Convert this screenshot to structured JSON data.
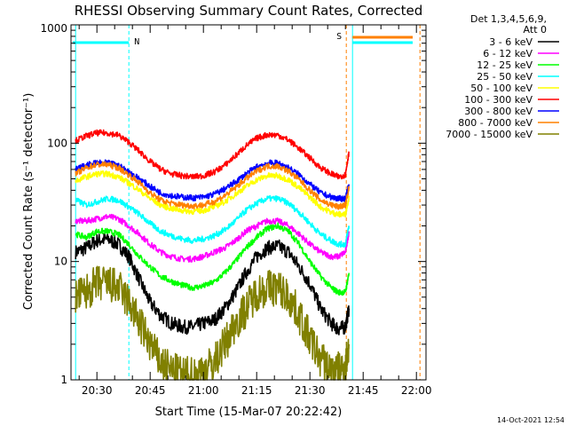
{
  "chart_data": {
    "type": "line",
    "title": "RHESSI Observing Summary Count Rates, Corrected",
    "xlabel": "Start Time (15-Mar-07 20:22:42)",
    "ylabel": "Corrected Count Rate (s⁻¹ detector⁻¹)",
    "yscale": "log",
    "ylim": [
      1,
      1000
    ],
    "yticks": [
      {
        "value": 1,
        "label": "1"
      },
      {
        "value": 10,
        "label": "10"
      },
      {
        "value": 100,
        "label": "100"
      },
      {
        "value": 1000,
        "label": "1000"
      }
    ],
    "xlim": [
      "20:22:42",
      "22:02:42"
    ],
    "xticks": [
      "20:30",
      "20:45",
      "21:00",
      "21:15",
      "21:30",
      "21:45",
      "22:00"
    ],
    "legend": {
      "position": "top-right",
      "header": [
        "Det 1,3,4,5,6,9,",
        "Att 0"
      ]
    },
    "series": [
      {
        "name": "3 - 6 keV",
        "color": "#000000",
        "x": [
          "20:24",
          "20:27",
          "20:30",
          "20:33",
          "20:36",
          "20:39",
          "20:42",
          "20:45",
          "20:48",
          "20:51",
          "20:54",
          "20:57",
          "21:00",
          "21:03",
          "21:06",
          "21:09",
          "21:12",
          "21:15",
          "21:18",
          "21:21",
          "21:24",
          "21:27",
          "21:30",
          "21:33",
          "21:36",
          "21:38",
          "21:40",
          "21:41"
        ],
        "y": [
          12,
          13,
          15,
          15.5,
          14,
          11,
          7,
          4.5,
          3.5,
          3,
          2.8,
          2.8,
          3,
          3.2,
          4,
          5.5,
          8,
          11,
          13,
          13.5,
          12,
          9,
          6.5,
          4,
          3,
          2.7,
          2.8,
          4
        ]
      },
      {
        "name": "6 - 12 keV",
        "color": "#ff00ff",
        "x": [
          "20:24",
          "20:27",
          "20:30",
          "20:33",
          "20:36",
          "20:39",
          "20:42",
          "20:45",
          "20:48",
          "20:51",
          "20:54",
          "20:57",
          "21:00",
          "21:03",
          "21:06",
          "21:09",
          "21:12",
          "21:15",
          "21:18",
          "21:21",
          "21:24",
          "21:27",
          "21:30",
          "21:33",
          "21:36",
          "21:38",
          "21:40",
          "21:41"
        ],
        "y": [
          22,
          22,
          23,
          24,
          23,
          20,
          17,
          14,
          12,
          11,
          10.5,
          10.5,
          11,
          12,
          13,
          15,
          18,
          20,
          22,
          22,
          20,
          17,
          14,
          12,
          11,
          11,
          12,
          18
        ]
      },
      {
        "name": "12 - 25 keV",
        "color": "#00ff00",
        "x": [
          "20:24",
          "20:27",
          "20:30",
          "20:33",
          "20:36",
          "20:39",
          "20:42",
          "20:45",
          "20:48",
          "20:51",
          "20:54",
          "20:57",
          "21:00",
          "21:03",
          "21:06",
          "21:09",
          "21:12",
          "21:15",
          "21:18",
          "21:21",
          "21:24",
          "21:27",
          "21:30",
          "21:33",
          "21:36",
          "21:38",
          "21:40",
          "21:41"
        ],
        "y": [
          17,
          16,
          18,
          18,
          17,
          14,
          11,
          9,
          7.5,
          6.8,
          6.3,
          6,
          6.2,
          6.7,
          8,
          10,
          13,
          16,
          19,
          20,
          18,
          14,
          10,
          7.5,
          6,
          5.5,
          5.5,
          8
        ]
      },
      {
        "name": "25 - 50 keV",
        "color": "#00ffff",
        "x": [
          "20:24",
          "20:27",
          "20:30",
          "20:33",
          "20:36",
          "20:39",
          "20:42",
          "20:45",
          "20:48",
          "20:51",
          "20:54",
          "20:57",
          "21:00",
          "21:03",
          "21:06",
          "21:09",
          "21:12",
          "21:15",
          "21:18",
          "21:21",
          "21:24",
          "21:27",
          "21:30",
          "21:33",
          "21:36",
          "21:38",
          "21:40",
          "21:41"
        ],
        "y": [
          33,
          30,
          32,
          34,
          33,
          29,
          25,
          21,
          18,
          16.5,
          15.5,
          15,
          15.5,
          16.5,
          18.5,
          22,
          27,
          31,
          34,
          34,
          31,
          26,
          21,
          17,
          15,
          14,
          14,
          20
        ]
      },
      {
        "name": "50 - 100 keV",
        "color": "#ffff00",
        "x": [
          "20:24",
          "20:27",
          "20:30",
          "20:33",
          "20:36",
          "20:39",
          "20:42",
          "20:45",
          "20:48",
          "20:51",
          "20:54",
          "20:57",
          "21:00",
          "21:03",
          "21:06",
          "21:09",
          "21:12",
          "21:15",
          "21:18",
          "21:21",
          "21:24",
          "21:27",
          "21:30",
          "21:33",
          "21:36",
          "21:38",
          "21:40",
          "21:41"
        ],
        "y": [
          48,
          52,
          55,
          55,
          52,
          46,
          40,
          34,
          30,
          28,
          27,
          26.5,
          27,
          29,
          32,
          37,
          43,
          49,
          53,
          53,
          49,
          42,
          35,
          29,
          26,
          25,
          25,
          35
        ]
      },
      {
        "name": "100 - 300 keV",
        "color": "#ff0000",
        "x": [
          "20:24",
          "20:27",
          "20:30",
          "20:33",
          "20:36",
          "20:39",
          "20:42",
          "20:45",
          "20:48",
          "20:51",
          "20:54",
          "20:57",
          "21:00",
          "21:03",
          "21:06",
          "21:09",
          "21:12",
          "21:15",
          "21:18",
          "21:21",
          "21:24",
          "21:27",
          "21:30",
          "21:33",
          "21:36",
          "21:38",
          "21:40",
          "21:41"
        ],
        "y": [
          105,
          115,
          122,
          122,
          117,
          102,
          85,
          70,
          60,
          55,
          53,
          52,
          53,
          57,
          65,
          78,
          95,
          110,
          118,
          117,
          106,
          90,
          75,
          62,
          55,
          52,
          54,
          85
        ]
      },
      {
        "name": "300 - 800 keV",
        "color": "#0000ff",
        "x": [
          "20:24",
          "20:27",
          "20:30",
          "20:33",
          "20:36",
          "20:39",
          "20:42",
          "20:45",
          "20:48",
          "20:51",
          "20:54",
          "20:57",
          "21:00",
          "21:03",
          "21:06",
          "21:09",
          "21:12",
          "21:15",
          "21:18",
          "21:21",
          "21:24",
          "21:27",
          "21:30",
          "21:33",
          "21:36",
          "21:38",
          "21:40",
          "21:41"
        ],
        "y": [
          60,
          65,
          68,
          68,
          65,
          57,
          50,
          43,
          38,
          36,
          35,
          34.5,
          35,
          37,
          41,
          47,
          55,
          63,
          68,
          68,
          62,
          54,
          45,
          38,
          35,
          34,
          34,
          45
        ]
      },
      {
        "name": "800 - 7000 keV",
        "color": "#ff8000",
        "x": [
          "20:24",
          "20:27",
          "20:30",
          "20:33",
          "20:36",
          "20:39",
          "20:42",
          "20:45",
          "20:48",
          "20:51",
          "20:54",
          "20:57",
          "21:00",
          "21:03",
          "21:06",
          "21:09",
          "21:12",
          "21:15",
          "21:18",
          "21:21",
          "21:24",
          "21:27",
          "21:30",
          "21:33",
          "21:36",
          "21:38",
          "21:40",
          "21:41"
        ],
        "y": [
          55,
          62,
          66,
          66,
          62,
          54,
          46,
          38,
          33,
          31,
          30,
          29.5,
          30,
          32,
          36,
          42,
          50,
          58,
          64,
          64,
          58,
          49,
          40,
          33,
          30,
          29,
          30,
          42
        ]
      },
      {
        "name": "7000 - 15000 keV",
        "color": "#808000",
        "x": [
          "20:24",
          "20:27",
          "20:30",
          "20:33",
          "20:36",
          "20:39",
          "20:42",
          "20:45",
          "20:48",
          "20:51",
          "20:54",
          "20:57",
          "21:00",
          "21:03",
          "21:06",
          "21:09",
          "21:12",
          "21:15",
          "21:18",
          "21:21",
          "21:24",
          "21:27",
          "21:30",
          "21:33",
          "21:36",
          "21:38",
          "21:40",
          "21:41"
        ],
        "y": [
          5,
          5.5,
          6.5,
          6.5,
          6,
          4.5,
          3,
          2,
          1.4,
          1.2,
          1.1,
          1.1,
          1.2,
          1.4,
          2,
          3,
          4,
          5.5,
          6,
          6,
          5,
          3.5,
          2.2,
          1.5,
          1.2,
          1.2,
          1.3,
          2
        ]
      }
    ],
    "annotations": [
      {
        "label": "N",
        "color": "#00ffff"
      },
      {
        "label": "S",
        "color": "#ff8000"
      }
    ],
    "footer": "14-Oct-2021 12:54"
  }
}
